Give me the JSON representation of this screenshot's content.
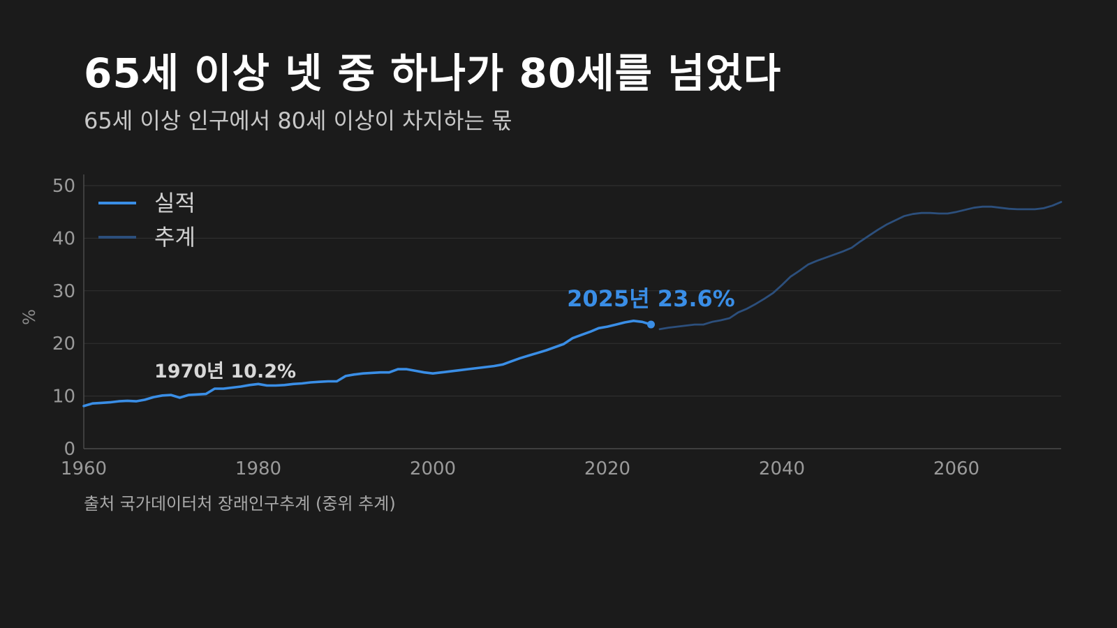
{
  "title": "65세 이상 넷 중 하나가 80세를 넘었다",
  "subtitle": "65세 이상 인구에서 80세 이상이 차지하는 몫",
  "source": "출처 국가데이터처 장래인구추계 (중위 추계)",
  "colors": {
    "background": "#1b1b1b",
    "actual": "#3a8ee6",
    "projection": "#2c4f7c",
    "grid": "#333333",
    "axis_text": "#9a9a9a",
    "annotation_1970": "#d8d8d8",
    "annotation_2025": "#3a8ee6"
  },
  "chart_data": {
    "type": "line",
    "title": "65세 이상 넷 중 하나가 80세를 넘었다",
    "subtitle": "65세 이상 인구에서 80세 이상이 차지하는 몫",
    "xlabel": "",
    "ylabel": "%",
    "xlim": [
      1960,
      2072
    ],
    "ylim": [
      0,
      50
    ],
    "xticks": [
      1960,
      1980,
      2000,
      2020,
      2040,
      2060
    ],
    "yticks": [
      0,
      10,
      20,
      30,
      40,
      50
    ],
    "grid": "horizontal",
    "legend_position": "top-left",
    "series": [
      {
        "name": "실적",
        "color": "#3a8ee6",
        "x": [
          1960,
          1961,
          1962,
          1963,
          1964,
          1965,
          1966,
          1967,
          1968,
          1969,
          1970,
          1971,
          1972,
          1973,
          1974,
          1975,
          1976,
          1977,
          1978,
          1979,
          1980,
          1981,
          1982,
          1983,
          1984,
          1985,
          1986,
          1987,
          1988,
          1989,
          1990,
          1991,
          1992,
          1993,
          1994,
          1995,
          1996,
          1997,
          1998,
          1999,
          2000,
          2001,
          2002,
          2003,
          2004,
          2005,
          2006,
          2007,
          2008,
          2009,
          2010,
          2011,
          2012,
          2013,
          2014,
          2015,
          2016,
          2017,
          2018,
          2019,
          2020,
          2021,
          2022,
          2023,
          2024,
          2025
        ],
        "y": [
          8.1,
          8.6,
          8.7,
          8.8,
          9.0,
          9.1,
          9.0,
          9.3,
          9.8,
          10.1,
          10.2,
          9.7,
          10.2,
          10.3,
          10.4,
          11.4,
          11.4,
          11.6,
          11.8,
          12.1,
          12.3,
          12.0,
          12.0,
          12.1,
          12.3,
          12.4,
          12.6,
          12.7,
          12.8,
          12.8,
          13.8,
          14.1,
          14.3,
          14.4,
          14.5,
          14.5,
          15.1,
          15.1,
          14.8,
          14.5,
          14.3,
          14.5,
          14.7,
          14.9,
          15.1,
          15.3,
          15.5,
          15.7,
          16.0,
          16.6,
          17.2,
          17.7,
          18.2,
          18.7,
          19.3,
          19.9,
          21.0,
          21.6,
          22.2,
          22.9,
          23.2,
          23.6,
          24.0,
          24.3,
          24.1,
          23.6
        ]
      },
      {
        "name": "추계",
        "color": "#2c4f7c",
        "x": [
          2026,
          2027,
          2028,
          2029,
          2030,
          2031,
          2032,
          2033,
          2034,
          2035,
          2036,
          2037,
          2038,
          2039,
          2040,
          2041,
          2042,
          2043,
          2044,
          2045,
          2046,
          2047,
          2048,
          2049,
          2050,
          2051,
          2052,
          2053,
          2054,
          2055,
          2056,
          2057,
          2058,
          2059,
          2060,
          2061,
          2062,
          2063,
          2064,
          2065,
          2066,
          2067,
          2068,
          2069,
          2070,
          2071,
          2072
        ],
        "y": [
          22.7,
          23.0,
          23.2,
          23.4,
          23.6,
          23.6,
          24.1,
          24.4,
          24.8,
          25.9,
          26.6,
          27.5,
          28.5,
          29.6,
          31.1,
          32.7,
          33.8,
          35.0,
          35.7,
          36.3,
          36.9,
          37.5,
          38.2,
          39.4,
          40.5,
          41.6,
          42.6,
          43.4,
          44.2,
          44.6,
          44.8,
          44.8,
          44.7,
          44.7,
          45.0,
          45.4,
          45.8,
          46.0,
          46.0,
          45.8,
          45.6,
          45.5,
          45.5,
          45.5,
          45.7,
          46.2,
          46.9
        ]
      }
    ],
    "annotations": [
      {
        "text": "1970년 10.2%",
        "x": 1970,
        "y": 10.2
      },
      {
        "text": "2025년 23.6%",
        "x": 2025,
        "y": 23.6
      }
    ]
  }
}
